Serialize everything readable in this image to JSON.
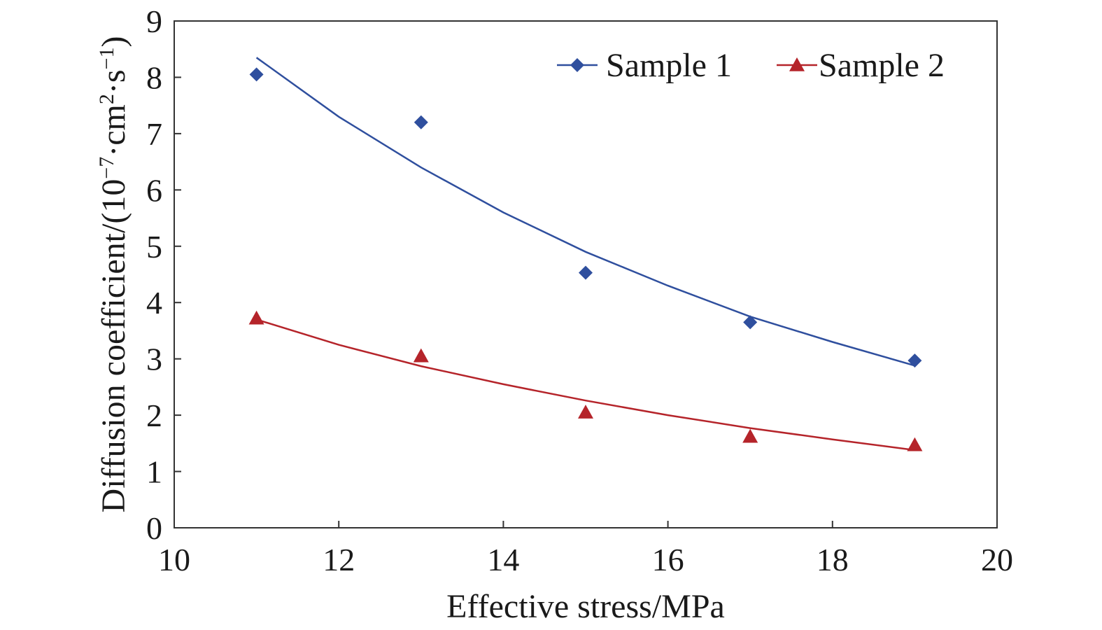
{
  "chart_data": {
    "type": "scatter",
    "xlabel": "Effective stress/MPa",
    "ylabel": {
      "prefix": "Diffusion coefficient/(10",
      "exp1": "−7",
      "mid": "·cm",
      "exp2": "2",
      "mid2": "·s",
      "exp3": "−1",
      "suffix": ")"
    },
    "xlim": [
      10,
      20
    ],
    "ylim": [
      0,
      9
    ],
    "x_ticks": [
      10,
      12,
      14,
      16,
      18,
      20
    ],
    "y_ticks": [
      0,
      1,
      2,
      3,
      4,
      5,
      6,
      7,
      8,
      9
    ],
    "grid": false,
    "legend_position": "top-right",
    "series": [
      {
        "name": "Sample 1",
        "color": "#2f4f9e",
        "marker": "diamond",
        "x": [
          11,
          13,
          15,
          17,
          19
        ],
        "y": [
          8.05,
          7.2,
          4.53,
          3.65,
          2.97
        ],
        "fit_x": [
          11,
          12,
          13,
          14,
          15,
          16,
          17,
          18,
          19
        ],
        "fit_y": [
          8.35,
          7.3,
          6.4,
          5.6,
          4.9,
          4.3,
          3.75,
          3.3,
          2.88
        ]
      },
      {
        "name": "Sample 2",
        "color": "#b5242a",
        "marker": "triangle",
        "x": [
          11,
          13,
          15,
          17,
          19
        ],
        "y": [
          3.72,
          3.05,
          2.05,
          1.62,
          1.47
        ],
        "fit_x": [
          11,
          12,
          13,
          14,
          15,
          16,
          17,
          18,
          19
        ],
        "fit_y": [
          3.7,
          3.25,
          2.87,
          2.55,
          2.26,
          2.0,
          1.77,
          1.57,
          1.38
        ]
      }
    ]
  }
}
